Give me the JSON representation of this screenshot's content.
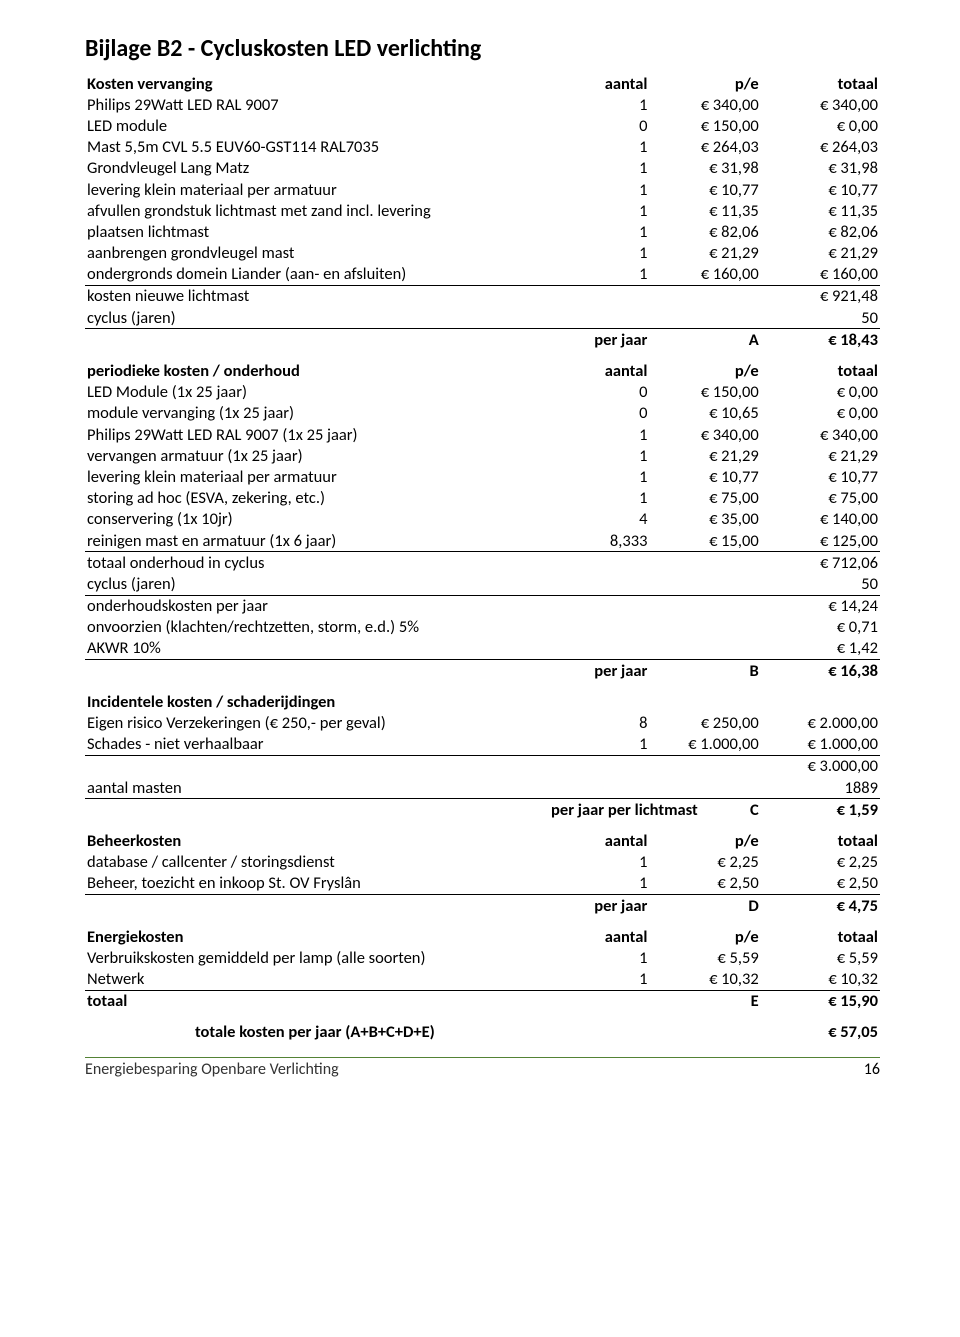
{
  "page": {
    "title": "Bijlage B2 - Cycluskosten LED verlichting",
    "footer_title": "Energiebesparing Openbare Verlichting",
    "page_number": "16"
  },
  "columns": {
    "aantal": "aantal",
    "pe": "p/e",
    "totaal": "totaal"
  },
  "sectionA": {
    "header": "Kosten vervanging",
    "rows": [
      {
        "label": "Philips 29Watt LED RAL 9007",
        "aantal": "1",
        "pe": "€ 340,00",
        "totaal": "€ 340,00"
      },
      {
        "label": "LED module",
        "aantal": "0",
        "pe": "€ 150,00",
        "totaal": "€ 0,00"
      },
      {
        "label": "Mast 5,5m CVL 5.5 EUV60-GST114 RAL7035",
        "aantal": "1",
        "pe": "€ 264,03",
        "totaal": "€ 264,03"
      },
      {
        "label": "Grondvleugel Lang Matz",
        "aantal": "1",
        "pe": "€ 31,98",
        "totaal": "€ 31,98"
      },
      {
        "label": "levering klein materiaal per armatuur",
        "aantal": "1",
        "pe": "€ 10,77",
        "totaal": "€ 10,77"
      },
      {
        "label": "afvullen grondstuk lichtmast met zand incl. levering",
        "aantal": "1",
        "pe": "€ 11,35",
        "totaal": "€ 11,35"
      },
      {
        "label": "plaatsen lichtmast",
        "aantal": "1",
        "pe": "€ 82,06",
        "totaal": "€ 82,06"
      },
      {
        "label": "aanbrengen grondvleugel mast",
        "aantal": "1",
        "pe": "€ 21,29",
        "totaal": "€ 21,29"
      },
      {
        "label": "ondergronds domein Liander (aan- en afsluiten)",
        "aantal": "1",
        "pe": "€ 160,00",
        "totaal": "€ 160,00"
      }
    ],
    "kosten_nieuwe_lichtmast": {
      "label": "kosten nieuwe lichtmast",
      "totaal": "€ 921,48"
    },
    "cyclus": {
      "label": "cyclus (jaren)",
      "totaal": "50"
    },
    "result": {
      "label": "per jaar",
      "letter": "A",
      "totaal": "€ 18,43"
    }
  },
  "sectionB": {
    "header": "periodieke kosten / onderhoud",
    "rows": [
      {
        "label": "LED Module (1x 25 jaar)",
        "aantal": "0",
        "pe": "€ 150,00",
        "totaal": "€ 0,00"
      },
      {
        "label": "module vervanging (1x 25 jaar)",
        "aantal": "0",
        "pe": "€ 10,65",
        "totaal": "€ 0,00"
      },
      {
        "label": "Philips 29Watt LED RAL 9007 (1x 25 jaar)",
        "aantal": "1",
        "pe": "€ 340,00",
        "totaal": "€ 340,00"
      },
      {
        "label": "vervangen armatuur (1x 25 jaar)",
        "aantal": "1",
        "pe": "€ 21,29",
        "totaal": "€ 21,29"
      },
      {
        "label": "levering klein materiaal per armatuur",
        "aantal": "1",
        "pe": "€ 10,77",
        "totaal": "€ 10,77"
      },
      {
        "label": "storing ad hoc (ESVA, zekering, etc.)",
        "aantal": "1",
        "pe": "€ 75,00",
        "totaal": "€ 75,00"
      },
      {
        "label": "conservering (1x 10jr)",
        "aantal": "4",
        "pe": "€ 35,00",
        "totaal": "€ 140,00"
      },
      {
        "label": "reinigen mast en armatuur (1x 6 jaar)",
        "aantal": "8,333",
        "pe": "€ 15,00",
        "totaal": "€ 125,00"
      }
    ],
    "totaal_onderhoud": {
      "label": "totaal onderhoud in cyclus",
      "totaal": "€ 712,06"
    },
    "cyclus": {
      "label": "cyclus (jaren)",
      "totaal": "50"
    },
    "onderhoudskosten": {
      "label": "onderhoudskosten per jaar",
      "totaal": "€ 14,24"
    },
    "onvoorzien": {
      "label": "onvoorzien (klachten/rechtzetten, storm, e.d.) 5%",
      "totaal": "€ 0,71"
    },
    "akwr": {
      "label": "AKWR 10%",
      "totaal": "€ 1,42"
    },
    "result": {
      "label": "per jaar",
      "letter": "B",
      "totaal": "€ 16,38"
    }
  },
  "sectionC": {
    "header": "Incidentele kosten / schaderijdingen",
    "rows": [
      {
        "label": "Eigen risico Verzekeringen (€ 250,- per geval)",
        "aantal": "8",
        "pe": "€ 250,00",
        "totaal": "€ 2.000,00"
      },
      {
        "label": "Schades - niet verhaalbaar",
        "aantal": "1",
        "pe": "€ 1.000,00",
        "totaal": "€ 1.000,00"
      }
    ],
    "subtotaal": {
      "totaal": "€ 3.000,00"
    },
    "aantal_masten": {
      "label": "aantal masten",
      "totaal": "1889"
    },
    "result": {
      "label": "per jaar per lichtmast",
      "letter": "C",
      "totaal": "€ 1,59"
    }
  },
  "sectionD": {
    "header": "Beheerkosten",
    "rows": [
      {
        "label": "database / callcenter / storingsdienst",
        "aantal": "1",
        "pe": "€ 2,25",
        "totaal": "€ 2,25"
      },
      {
        "label": "Beheer, toezicht en inkoop St. OV Fryslân",
        "aantal": "1",
        "pe": "€ 2,50",
        "totaal": "€ 2,50"
      }
    ],
    "result": {
      "label": "per jaar",
      "letter": "D",
      "totaal": "€ 4,75"
    }
  },
  "sectionE": {
    "header": "Energiekosten",
    "rows": [
      {
        "label": "Verbruikskosten gemiddeld per lamp (alle soorten)",
        "aantal": "1",
        "pe": "€ 5,59",
        "totaal": "€ 5,59"
      },
      {
        "label": "Netwerk",
        "aantal": "1",
        "pe": "€ 10,32",
        "totaal": "€ 10,32"
      }
    ],
    "totaal": {
      "label": "totaal",
      "letter": "E",
      "totaal": "€ 15,90"
    }
  },
  "grand_total": {
    "label": "totale kosten per jaar (A+B+C+D+E)",
    "totaal": "€ 57,05"
  }
}
